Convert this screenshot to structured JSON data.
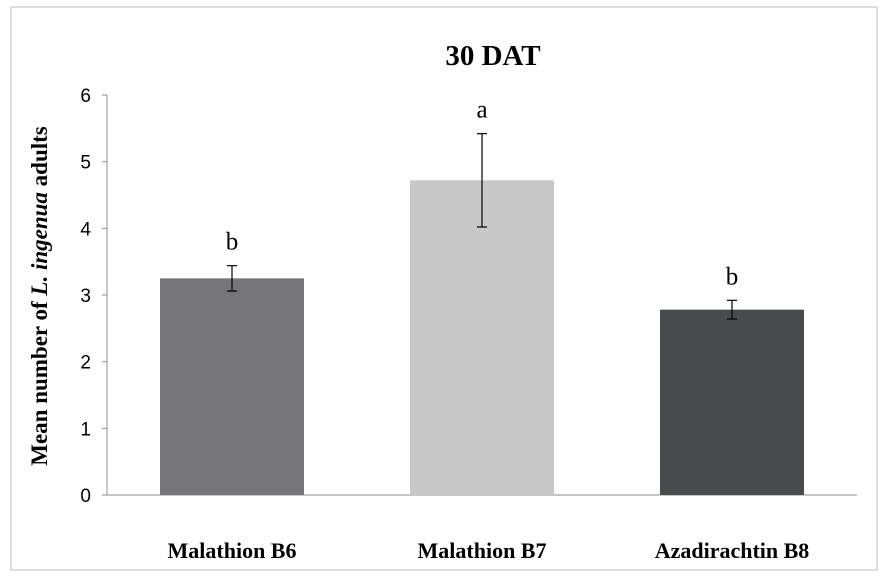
{
  "chart_data": {
    "type": "bar",
    "title": "30 DAT",
    "ylabel_parts": [
      "Mean number of ",
      "L. ingenua",
      " adults"
    ],
    "xlabel": "",
    "categories": [
      "Malathion B6",
      "Malathion B7",
      "Azadirachtin B8"
    ],
    "values": [
      3.25,
      4.72,
      2.78
    ],
    "error": [
      0.19,
      0.7,
      0.14
    ],
    "significance": [
      "b",
      "a",
      "b"
    ],
    "bar_colors": [
      "#767679",
      "#c8c8c9",
      "#4a4b4d"
    ],
    "ylim": [
      0,
      6
    ],
    "yticks": [
      "0",
      "1",
      "2",
      "3",
      "4",
      "5",
      "6"
    ],
    "grid": false,
    "legend": "none"
  }
}
